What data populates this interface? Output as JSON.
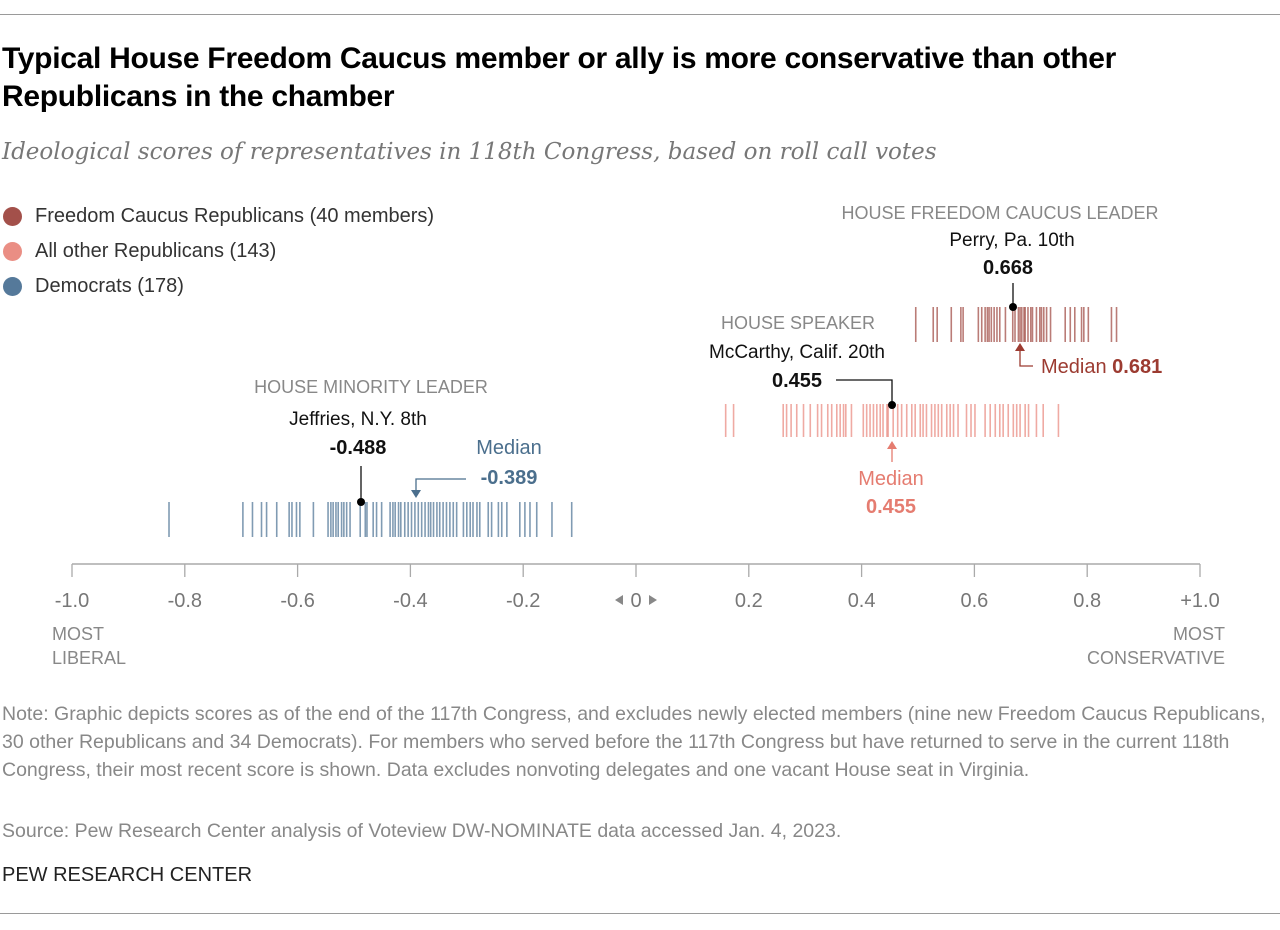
{
  "title": "Typical House Freedom Caucus member or ally is more conservative than other Republicans in the chamber",
  "subtitle": "Ideological scores of representatives in 118th Congress, based on roll call votes",
  "legend": [
    {
      "label": "Freedom Caucus Republicans (40 members)",
      "color": "#a3504a"
    },
    {
      "label": "All other Republicans (143)",
      "color": "#ea8e84"
    },
    {
      "label": "Democrats (178)",
      "color": "#55799a"
    }
  ],
  "note": "Note: Graphic depicts scores as of the end of the 117th Congress, and excludes newly elected members (nine new Freedom Caucus Republicans, 30 other Republicans and 34 Democrats). For members who served before the 117th Congress but have returned to serve in the current 118th Congress, their most recent score is shown. Data excludes nonvoting delegates and one vacant House seat in Virginia.",
  "source": "Source: Pew Research Center analysis of Voteview DW-NOMINATE data accessed Jan. 4, 2023.",
  "brand": "PEW RESEARCH CENTER",
  "chart_data": {
    "type": "strip",
    "xlim": [
      -1.0,
      1.0
    ],
    "x_ticks": [
      "-1.0",
      "-0.8",
      "-0.6",
      "-0.4",
      "-0.2",
      "0",
      "0.2",
      "0.4",
      "0.6",
      "0.8",
      "+1.0"
    ],
    "x_tick_values": [
      -1.0,
      -0.8,
      -0.6,
      -0.4,
      -0.2,
      0,
      0.2,
      0.4,
      0.6,
      0.8,
      1.0
    ],
    "axis_left_label": [
      "MOST",
      "LIBERAL"
    ],
    "axis_right_label": [
      "MOST",
      "CONSERVATIVE"
    ],
    "series": [
      {
        "name": "Freedom Caucus Republicans (40 members)",
        "color": "#a3504a",
        "values": [
          0.496,
          0.527,
          0.534,
          0.559,
          0.576,
          0.58,
          0.607,
          0.613,
          0.619,
          0.623,
          0.626,
          0.63,
          0.635,
          0.64,
          0.645,
          0.655,
          0.668,
          0.672,
          0.678,
          0.681,
          0.684,
          0.688,
          0.69,
          0.695,
          0.7,
          0.703,
          0.71,
          0.716,
          0.719,
          0.723,
          0.728,
          0.735,
          0.761,
          0.77,
          0.778,
          0.79,
          0.794,
          0.802,
          0.843,
          0.852
        ]
      },
      {
        "name": "All other Republicans (143)",
        "color": "#ea8e84",
        "values": [
          0.159,
          0.173,
          0.261,
          0.267,
          0.275,
          0.285,
          0.297,
          0.309,
          0.322,
          0.329,
          0.34,
          0.347,
          0.356,
          0.362,
          0.368,
          0.372,
          0.382,
          0.403,
          0.409,
          0.415,
          0.421,
          0.427,
          0.433,
          0.438,
          0.445,
          0.447,
          0.456,
          0.464,
          0.471,
          0.48,
          0.489,
          0.495,
          0.504,
          0.509,
          0.515,
          0.524,
          0.53,
          0.536,
          0.542,
          0.551,
          0.557,
          0.563,
          0.571,
          0.586,
          0.594,
          0.601,
          0.619,
          0.628,
          0.637,
          0.645,
          0.651,
          0.66,
          0.669,
          0.675,
          0.681,
          0.69,
          0.696,
          0.71,
          0.722,
          0.749
        ]
      },
      {
        "name": "Democrats (178)",
        "color": "#55799a",
        "values": [
          -0.828,
          -0.697,
          -0.68,
          -0.664,
          -0.655,
          -0.637,
          -0.615,
          -0.61,
          -0.602,
          -0.596,
          -0.572,
          -0.546,
          -0.541,
          -0.537,
          -0.532,
          -0.528,
          -0.522,
          -0.518,
          -0.513,
          -0.507,
          -0.489,
          -0.48,
          -0.477,
          -0.466,
          -0.46,
          -0.451,
          -0.436,
          -0.431,
          -0.427,
          -0.421,
          -0.417,
          -0.41,
          -0.404,
          -0.398,
          -0.392,
          -0.386,
          -0.38,
          -0.374,
          -0.368,
          -0.364,
          -0.359,
          -0.353,
          -0.348,
          -0.342,
          -0.336,
          -0.33,
          -0.324,
          -0.318,
          -0.306,
          -0.3,
          -0.294,
          -0.289,
          -0.282,
          -0.277,
          -0.262,
          -0.256,
          -0.244,
          -0.238,
          -0.229,
          -0.206,
          -0.197,
          -0.188,
          -0.176,
          -0.149,
          -0.114
        ]
      }
    ],
    "annotations": {
      "fc_leader": {
        "role": "HOUSE FREEDOM CAUCUS LEADER",
        "name": "Perry, Pa. 10th",
        "value": "0.668",
        "x": 0.668
      },
      "fc_median": {
        "label": "Median",
        "value": "0.681",
        "x": 0.681
      },
      "speaker": {
        "role": "HOUSE SPEAKER",
        "name": "McCarthy, Calif. 20th",
        "value": "0.455",
        "x": 0.455
      },
      "rep_median": {
        "label": "Median",
        "value": "0.455",
        "x": 0.455
      },
      "minority_leader": {
        "role": "HOUSE MINORITY LEADER",
        "name": "Jeffries, N.Y. 8th",
        "value": "-0.488",
        "x": -0.488
      },
      "dem_median": {
        "label": "Median",
        "value": "-0.389",
        "x": -0.389
      }
    }
  }
}
